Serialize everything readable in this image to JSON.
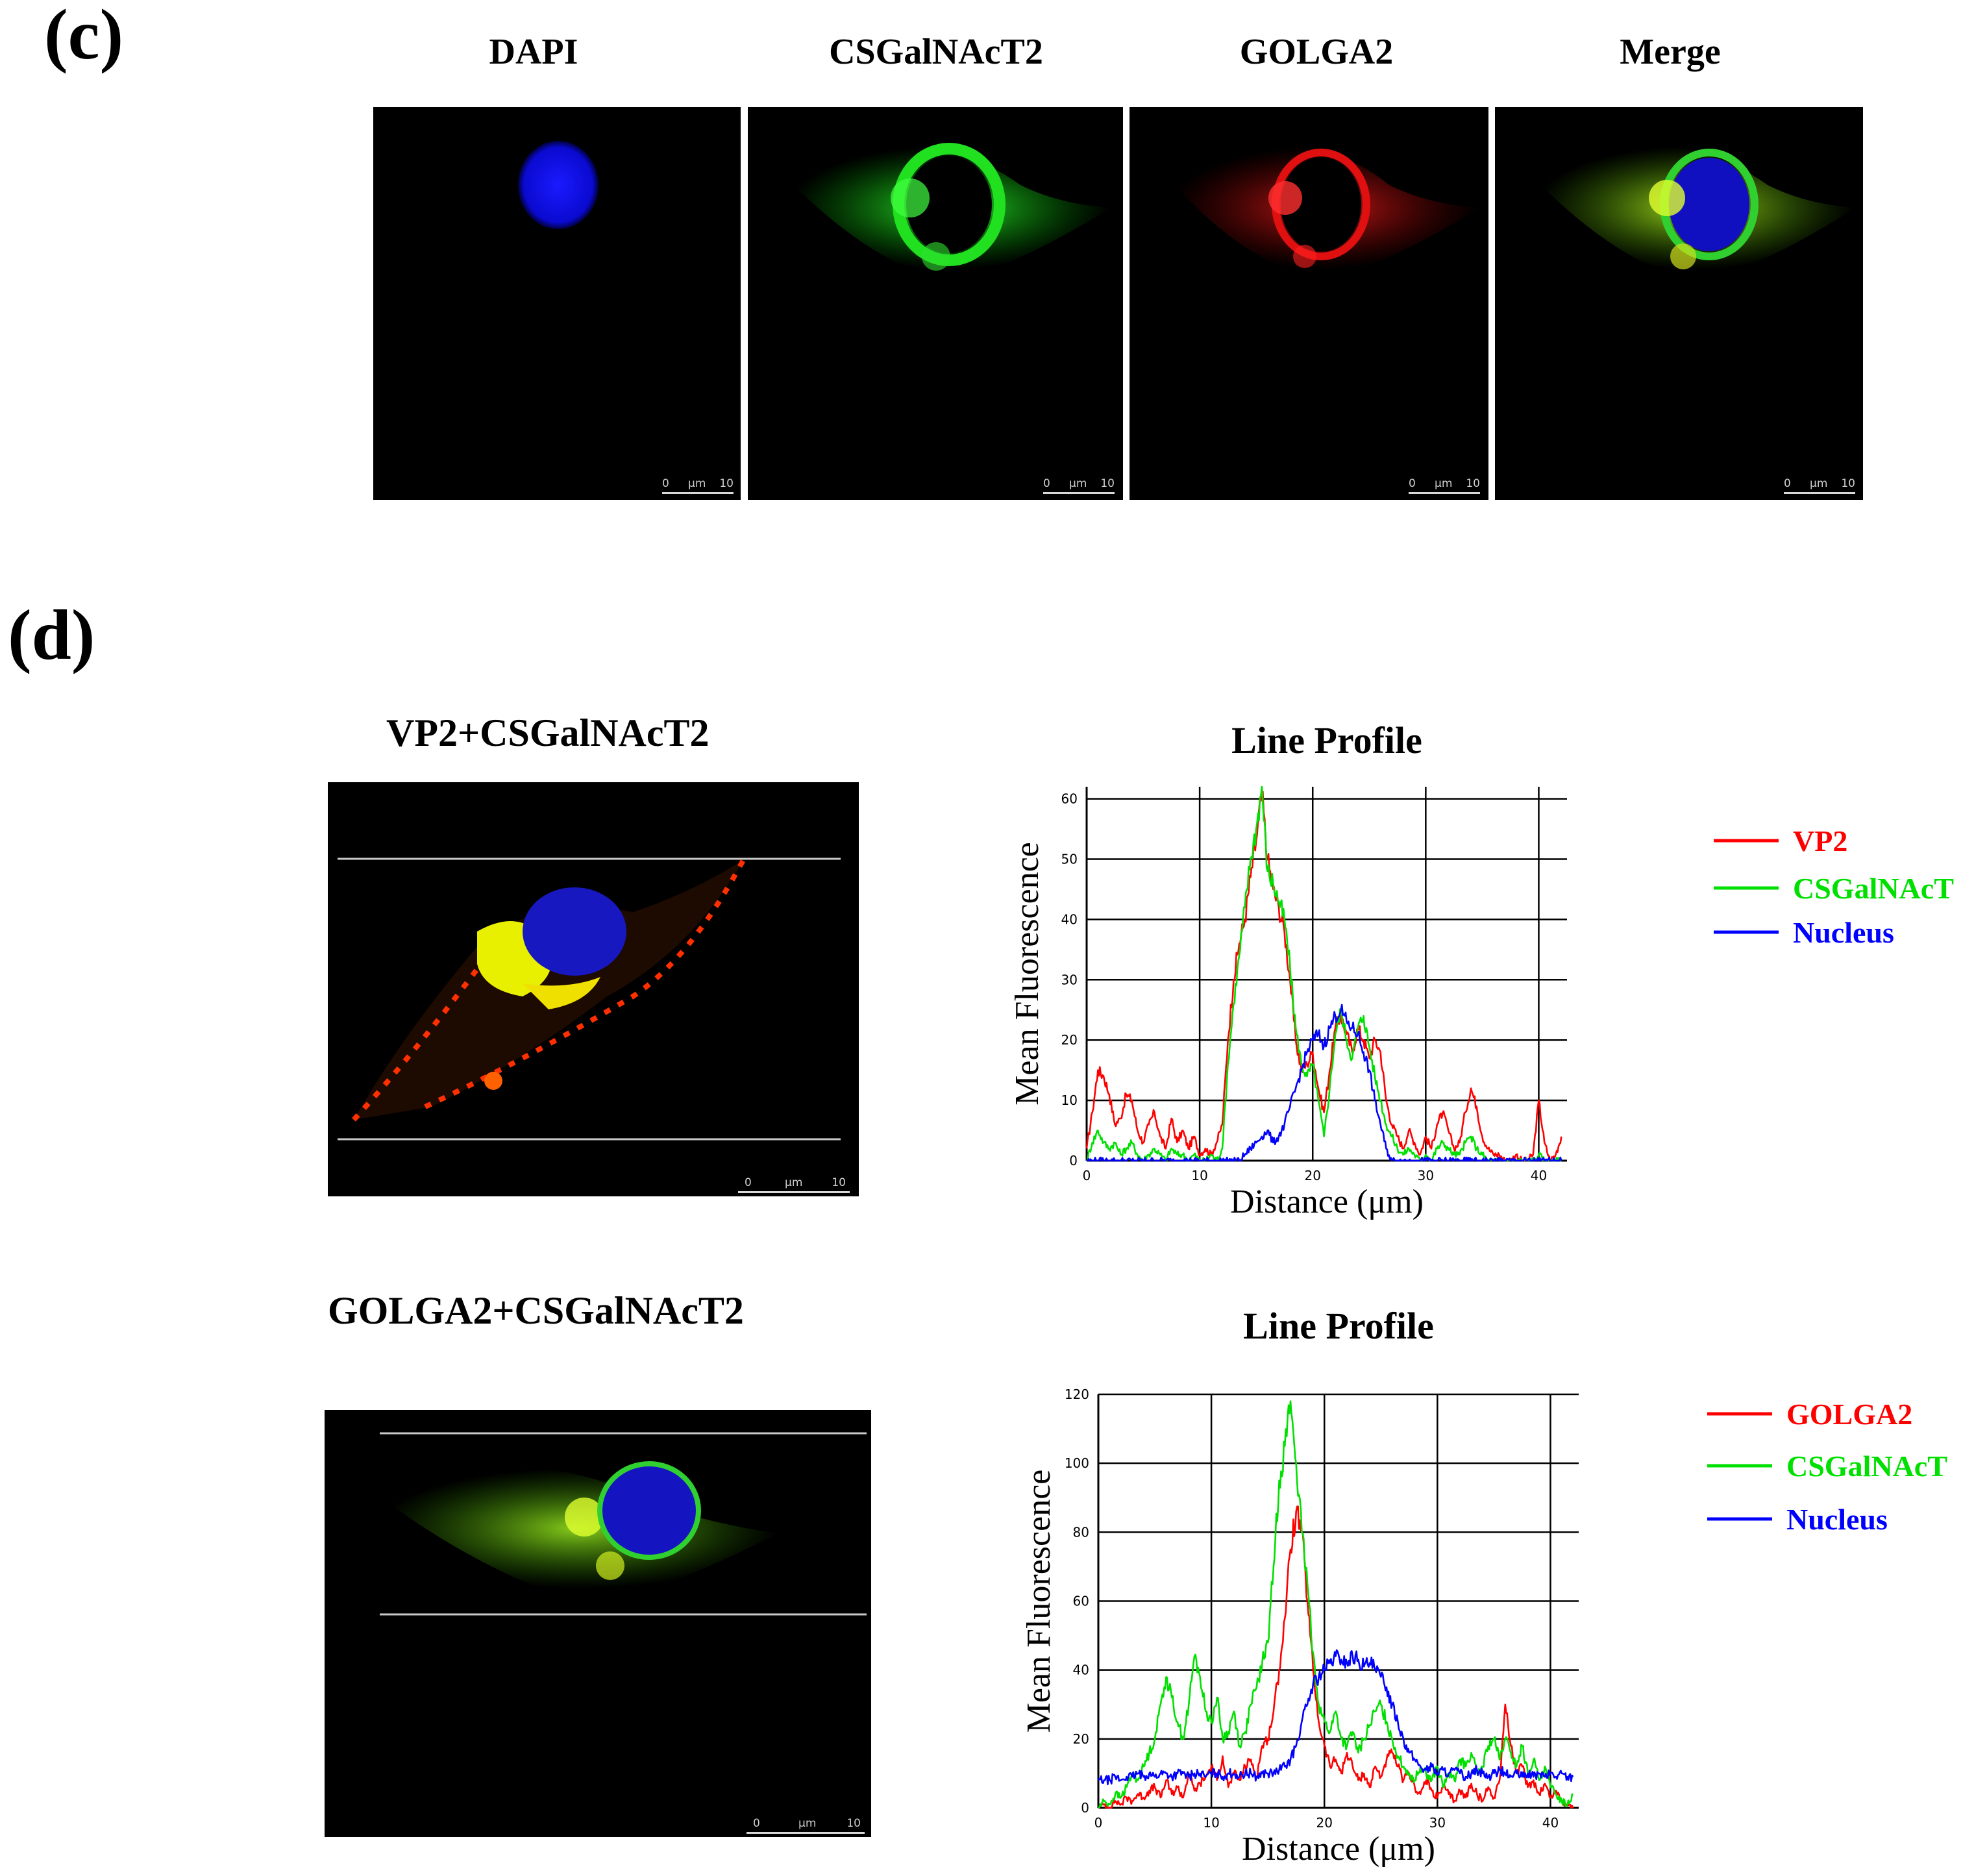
{
  "panel_c": {
    "letter": "(c)",
    "columns": [
      "DAPI",
      "CSGalNAcT2",
      "GOLGA2",
      "Merge"
    ],
    "scalebar": {
      "start": "0",
      "unit": "μm",
      "end": "10"
    }
  },
  "panel_d": {
    "letter": "(d)",
    "rows": [
      {
        "title": "VP2+CSGalNAcT2"
      },
      {
        "title": "GOLGA2+CSGalNAcT2"
      }
    ],
    "scalebar": {
      "start": "0",
      "unit": "μm",
      "end": "10"
    }
  },
  "colors": {
    "red": "#ff0000",
    "green": "#00e000",
    "blue": "#0000ff"
  },
  "chart_data": [
    {
      "type": "line",
      "title": "Line Profile",
      "xlabel": "Distance (μm)",
      "ylabel": "Mean Fluorescence",
      "xlim": [
        0,
        42.5
      ],
      "ylim": [
        0,
        62
      ],
      "xticks": [
        0,
        10,
        20,
        30,
        40
      ],
      "yticks": [
        0,
        10,
        20,
        30,
        40,
        50,
        60
      ],
      "grid": true,
      "legend_position": "right",
      "series": [
        {
          "name": "VP2",
          "color": "#ff0000",
          "x": [
            0,
            0.5,
            1,
            1.5,
            2,
            2.5,
            3,
            3.5,
            4,
            4.5,
            5,
            5.5,
            6,
            6.5,
            7,
            7.5,
            8,
            8.5,
            9,
            9.5,
            10,
            10.5,
            11,
            11.5,
            12,
            12.5,
            13,
            13.5,
            14,
            14.5,
            15,
            15.5,
            16,
            16.5,
            17,
            17.5,
            18,
            18.5,
            19,
            19.5,
            20,
            20.5,
            21,
            21.5,
            22,
            22.5,
            23,
            23.5,
            24,
            24.5,
            25,
            25.5,
            26,
            26.5,
            27,
            27.5,
            28,
            28.5,
            29,
            29.5,
            30,
            30.5,
            31,
            31.5,
            32,
            32.5,
            33,
            33.5,
            34,
            34.5,
            35,
            35.5,
            36,
            36.5,
            37,
            37.5,
            38,
            38.5,
            39,
            39.5,
            40,
            40.5,
            41,
            41.5,
            42
          ],
          "y": [
            2,
            8,
            15,
            14,
            11,
            6,
            7,
            11,
            10,
            5,
            3,
            6,
            8,
            4,
            2,
            7,
            3,
            5,
            2,
            4,
            1,
            2,
            1,
            3,
            6,
            20,
            30,
            36,
            40,
            47,
            53,
            61,
            50,
            45,
            42,
            38,
            30,
            20,
            15,
            16,
            18,
            12,
            8,
            15,
            22,
            24,
            21,
            18,
            22,
            20,
            17,
            20,
            18,
            10,
            6,
            4,
            2,
            5,
            3,
            1,
            4,
            2,
            6,
            8,
            5,
            2,
            3,
            8,
            12,
            9,
            4,
            2,
            1,
            1,
            0,
            0,
            1,
            0,
            0,
            1,
            10,
            3,
            0,
            1,
            4
          ]
        },
        {
          "name": "CSGalNAcT",
          "color": "#00e000",
          "x": [
            0,
            0.5,
            1,
            1.5,
            2,
            2.5,
            3,
            3.5,
            4,
            4.5,
            5,
            5.5,
            6,
            6.5,
            7,
            7.5,
            8,
            8.5,
            9,
            9.5,
            10,
            10.5,
            11,
            11.5,
            12,
            12.5,
            13,
            13.5,
            14,
            14.5,
            15,
            15.5,
            16,
            16.5,
            17,
            17.5,
            18,
            18.5,
            19,
            19.5,
            20,
            20.5,
            21,
            21.5,
            22,
            22.5,
            23,
            23.5,
            24,
            24.5,
            25,
            25.5,
            26,
            26.5,
            27,
            27.5,
            28,
            28.5,
            29,
            29.5,
            30,
            30.5,
            31,
            31.5,
            32,
            32.5,
            33,
            33.5,
            34,
            34.5,
            35,
            35.5,
            36,
            36.5,
            37,
            37.5,
            38,
            38.5,
            39,
            39.5,
            40,
            40.5,
            41,
            41.5,
            42
          ],
          "y": [
            0,
            3,
            5,
            3,
            2,
            3,
            1,
            2,
            3,
            1,
            0,
            1,
            2,
            1,
            0,
            2,
            1,
            1,
            0,
            1,
            0,
            0,
            1,
            0,
            2,
            16,
            26,
            34,
            42,
            50,
            55,
            62,
            48,
            46,
            43,
            40,
            32,
            22,
            16,
            14,
            16,
            10,
            4,
            12,
            21,
            25,
            20,
            17,
            22,
            24,
            19,
            14,
            10,
            6,
            4,
            2,
            1,
            2,
            1,
            0,
            1,
            0,
            2,
            3,
            2,
            1,
            1,
            3,
            4,
            2,
            1,
            0,
            0,
            0,
            0,
            0,
            0,
            0,
            0,
            0,
            1,
            0,
            0,
            0,
            0
          ]
        },
        {
          "name": "Nucleus",
          "color": "#0000ff",
          "x": [
            0,
            0.5,
            1,
            1.5,
            2,
            2.5,
            3,
            3.5,
            4,
            4.5,
            5,
            5.5,
            6,
            6.5,
            7,
            7.5,
            8,
            8.5,
            9,
            9.5,
            10,
            10.5,
            11,
            11.5,
            12,
            12.5,
            13,
            13.5,
            14,
            14.5,
            15,
            15.5,
            16,
            16.5,
            17,
            17.5,
            18,
            18.5,
            19,
            19.5,
            20,
            20.5,
            21,
            21.5,
            22,
            22.5,
            23,
            23.5,
            24,
            24.5,
            25,
            25.5,
            26,
            26.5,
            27,
            27.5,
            28,
            28.5,
            29,
            29.5,
            30,
            30.5,
            31,
            31.5,
            32,
            32.5,
            33,
            33.5,
            34,
            34.5,
            35,
            35.5,
            36,
            36.5,
            37,
            37.5,
            38,
            38.5,
            39,
            39.5,
            40,
            40.5,
            41,
            41.5,
            42
          ],
          "y": [
            0,
            0,
            0,
            0,
            0,
            0,
            0,
            0,
            0,
            0,
            0,
            0,
            0,
            0,
            0,
            0,
            0,
            0,
            0,
            0,
            0,
            0,
            0,
            0,
            0,
            0,
            0,
            0,
            1,
            2,
            3,
            4,
            5,
            3,
            4,
            6,
            9,
            12,
            15,
            18,
            20,
            21,
            19,
            22,
            24,
            25,
            23,
            22,
            21,
            18,
            15,
            10,
            6,
            2,
            0,
            0,
            0,
            0,
            0,
            0,
            0,
            0,
            0,
            0,
            0,
            0,
            0,
            0,
            0,
            0,
            0,
            0,
            0,
            0,
            0,
            0,
            0,
            0,
            0,
            0,
            0,
            0,
            0,
            0,
            0
          ]
        }
      ]
    },
    {
      "type": "line",
      "title": "Line Profile",
      "xlabel": "Distance (μm)",
      "ylabel": "Mean Fluorescence",
      "xlim": [
        0,
        42.5
      ],
      "ylim": [
        0,
        120
      ],
      "xticks": [
        0,
        10,
        20,
        30,
        40
      ],
      "yticks": [
        0,
        20,
        40,
        60,
        80,
        100,
        120
      ],
      "grid": true,
      "legend_position": "right",
      "series": [
        {
          "name": "GOLGA2",
          "color": "#ff0000",
          "x": [
            0,
            0.5,
            1,
            1.5,
            2,
            2.5,
            3,
            3.5,
            4,
            4.5,
            5,
            5.5,
            6,
            6.5,
            7,
            7.5,
            8,
            8.5,
            9,
            9.5,
            10,
            10.5,
            11,
            11.5,
            12,
            12.5,
            13,
            13.5,
            14,
            14.5,
            15,
            15.5,
            16,
            16.5,
            17,
            17.5,
            18,
            18.5,
            19,
            19.5,
            20,
            20.5,
            21,
            21.5,
            22,
            22.5,
            23,
            23.5,
            24,
            24.5,
            25,
            25.5,
            26,
            26.5,
            27,
            27.5,
            28,
            28.5,
            29,
            29.5,
            30,
            30.5,
            31,
            31.5,
            32,
            32.5,
            33,
            33.5,
            34,
            34.5,
            35,
            35.5,
            36,
            36.5,
            37,
            37.5,
            38,
            38.5,
            39,
            39.5,
            40,
            40.5,
            41,
            41.5,
            42
          ],
          "y": [
            0,
            1,
            0,
            2,
            1,
            3,
            2,
            4,
            3,
            5,
            6,
            3,
            8,
            4,
            6,
            3,
            10,
            5,
            7,
            9,
            12,
            8,
            15,
            6,
            10,
            8,
            12,
            14,
            9,
            18,
            20,
            28,
            40,
            55,
            75,
            86,
            80,
            60,
            40,
            25,
            18,
            12,
            14,
            10,
            16,
            12,
            8,
            10,
            6,
            12,
            9,
            14,
            16,
            12,
            8,
            10,
            6,
            4,
            8,
            5,
            3,
            6,
            4,
            2,
            5,
            3,
            7,
            4,
            2,
            6,
            3,
            8,
            30,
            18,
            10,
            12,
            6,
            8,
            4,
            7,
            3,
            5,
            2,
            1,
            0
          ]
        },
        {
          "name": "CSGalNAcT",
          "color": "#00e000",
          "x": [
            0,
            0.5,
            1,
            1.5,
            2,
            2.5,
            3,
            3.5,
            4,
            4.5,
            5,
            5.5,
            6,
            6.5,
            7,
            7.5,
            8,
            8.5,
            9,
            9.5,
            10,
            10.5,
            11,
            11.5,
            12,
            12.5,
            13,
            13.5,
            14,
            14.5,
            15,
            15.5,
            16,
            16.5,
            17,
            17.5,
            18,
            18.5,
            19,
            19.5,
            20,
            20.5,
            21,
            21.5,
            22,
            22.5,
            23,
            23.5,
            24,
            24.5,
            25,
            25.5,
            26,
            26.5,
            27,
            27.5,
            28,
            28.5,
            29,
            29.5,
            30,
            30.5,
            31,
            31.5,
            32,
            32.5,
            33,
            33.5,
            34,
            34.5,
            35,
            35.5,
            36,
            36.5,
            37,
            37.5,
            38,
            38.5,
            39,
            39.5,
            40,
            40.5,
            41,
            41.5,
            42
          ],
          "y": [
            0,
            2,
            1,
            4,
            3,
            6,
            10,
            8,
            12,
            16,
            20,
            30,
            38,
            32,
            25,
            20,
            30,
            44,
            38,
            28,
            25,
            32,
            20,
            22,
            28,
            18,
            22,
            30,
            35,
            42,
            48,
            70,
            95,
            105,
            118,
            100,
            80,
            65,
            45,
            30,
            25,
            22,
            28,
            20,
            18,
            22,
            16,
            20,
            24,
            28,
            30,
            25,
            20,
            15,
            12,
            10,
            8,
            12,
            10,
            8,
            12,
            6,
            10,
            8,
            14,
            12,
            16,
            10,
            12,
            18,
            20,
            14,
            20,
            16,
            12,
            18,
            10,
            14,
            8,
            12,
            6,
            4,
            2,
            1,
            4
          ]
        },
        {
          "name": "Nucleus",
          "color": "#0000ff",
          "x": [
            0,
            0.5,
            1,
            1.5,
            2,
            2.5,
            3,
            3.5,
            4,
            4.5,
            5,
            5.5,
            6,
            6.5,
            7,
            7.5,
            8,
            8.5,
            9,
            9.5,
            10,
            10.5,
            11,
            11.5,
            12,
            12.5,
            13,
            13.5,
            14,
            14.5,
            15,
            15.5,
            16,
            16.5,
            17,
            17.5,
            18,
            18.5,
            19,
            19.5,
            20,
            20.5,
            21,
            21.5,
            22,
            22.5,
            23,
            23.5,
            24,
            24.5,
            25,
            25.5,
            26,
            26.5,
            27,
            27.5,
            28,
            28.5,
            29,
            29.5,
            30,
            30.5,
            31,
            31.5,
            32,
            32.5,
            33,
            33.5,
            34,
            34.5,
            35,
            35.5,
            36,
            36.5,
            37,
            37.5,
            38,
            38.5,
            39,
            39.5,
            40,
            40.5,
            41,
            41.5,
            42
          ],
          "y": [
            8,
            8,
            8,
            9,
            8,
            9,
            9,
            10,
            9,
            10,
            9,
            10,
            10,
            9,
            10,
            10,
            9,
            10,
            10,
            9,
            10,
            10,
            9,
            10,
            10,
            9,
            10,
            10,
            9,
            10,
            10,
            10,
            11,
            12,
            14,
            18,
            25,
            30,
            36,
            38,
            40,
            42,
            44,
            43,
            42,
            44,
            43,
            41,
            42,
            40,
            38,
            35,
            30,
            25,
            20,
            16,
            14,
            12,
            11,
            12,
            10,
            11,
            10,
            11,
            10,
            9,
            10,
            11,
            10,
            9,
            10,
            11,
            10,
            9,
            10,
            9,
            10,
            9,
            10,
            9,
            10,
            9,
            10,
            9,
            9
          ]
        }
      ]
    }
  ]
}
